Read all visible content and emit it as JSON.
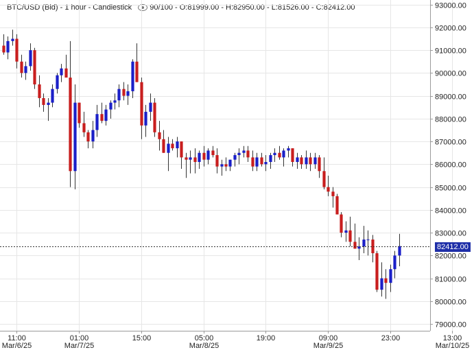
{
  "header": {
    "symbol": "BTC/USD (Bid) - 1 hour - Candlestick",
    "bars": "90/100",
    "open": "O:81999.00",
    "high": "H:82950.00",
    "low": "L:81526.00",
    "close": "C:82412.00"
  },
  "colors": {
    "up": "#1a1fc8",
    "down": "#c81e1e",
    "badge": "#1f2fa8"
  },
  "chart_data": {
    "type": "candlestick",
    "ylim": [
      78700,
      93200
    ],
    "yticks": [
      "93000.00",
      "92000.00",
      "91000.00",
      "90000.00",
      "89000.00",
      "88000.00",
      "87000.00",
      "86000.00",
      "85000.00",
      "84000.00",
      "83000.00",
      "82000.00",
      "81000.00",
      "80000.00",
      "79000.00"
    ],
    "xticks": [
      {
        "time": "11:00",
        "date": "Mar/6/25",
        "index": 3
      },
      {
        "time": "01:00",
        "date": "Mar/7/25",
        "index": 17
      },
      {
        "time": "15:00",
        "date": "",
        "index": 31
      },
      {
        "time": "05:00",
        "date": "Mar/8/25",
        "index": 45
      },
      {
        "time": "19:00",
        "date": "",
        "index": 59
      },
      {
        "time": "09:00",
        "date": "Mar/9/25",
        "index": 73
      },
      {
        "time": "23:00",
        "date": "",
        "index": 87
      },
      {
        "time": "13:00",
        "date": "Mar/10/25",
        "index": 101
      }
    ],
    "last_price": "82412.00",
    "last_value": 82412,
    "candles": [
      [
        91200,
        91700,
        90800,
        90900
      ],
      [
        90900,
        91600,
        90600,
        91400
      ],
      [
        91400,
        91900,
        91200,
        91500
      ],
      [
        91500,
        91700,
        90200,
        90500
      ],
      [
        90500,
        90800,
        89800,
        90000
      ],
      [
        90000,
        90500,
        89700,
        90300
      ],
      [
        90300,
        91300,
        90100,
        91000
      ],
      [
        91000,
        91100,
        89300,
        89500
      ],
      [
        89500,
        89900,
        88500,
        88900
      ],
      [
        88900,
        89100,
        88300,
        88600
      ],
      [
        88600,
        88900,
        87900,
        88700
      ],
      [
        88700,
        89500,
        88500,
        89300
      ],
      [
        89300,
        90000,
        89100,
        89900
      ],
      [
        89900,
        90400,
        89600,
        90200
      ],
      [
        90200,
        90800,
        89800,
        89800
      ],
      [
        89800,
        91400,
        85000,
        85700
      ],
      [
        85700,
        89500,
        84900,
        88700
      ],
      [
        88700,
        88700,
        87600,
        87800
      ],
      [
        87800,
        88300,
        87200,
        87400
      ],
      [
        87400,
        87500,
        86700,
        87000
      ],
      [
        87000,
        87900,
        86700,
        87500
      ],
      [
        87500,
        88600,
        87200,
        88200
      ],
      [
        88200,
        88700,
        87800,
        87900
      ],
      [
        87900,
        88600,
        87700,
        88400
      ],
      [
        88400,
        88800,
        88000,
        88700
      ],
      [
        88700,
        89100,
        88400,
        88800
      ],
      [
        88800,
        89500,
        88500,
        89300
      ],
      [
        89300,
        89600,
        88800,
        89000
      ],
      [
        89000,
        89500,
        88600,
        89200
      ],
      [
        89200,
        90600,
        88900,
        90500
      ],
      [
        90500,
        91300,
        89700,
        89600
      ],
      [
        89600,
        89800,
        87100,
        87700
      ],
      [
        87700,
        88600,
        87200,
        88300
      ],
      [
        88300,
        89100,
        87900,
        88700
      ],
      [
        88700,
        88900,
        87200,
        87400
      ],
      [
        87400,
        87900,
        86600,
        87100
      ],
      [
        87100,
        87500,
        86500,
        86500
      ],
      [
        86500,
        87200,
        85700,
        86900
      ],
      [
        86900,
        87100,
        86600,
        86700
      ],
      [
        86700,
        87200,
        86300,
        87000
      ],
      [
        87000,
        87000,
        85800,
        86300
      ],
      [
        86300,
        86500,
        85400,
        86200
      ],
      [
        86200,
        86600,
        85600,
        86300
      ],
      [
        86300,
        86700,
        85600,
        86100
      ],
      [
        86100,
        86600,
        85800,
        86500
      ],
      [
        86500,
        86800,
        85900,
        86200
      ],
      [
        86200,
        86700,
        86000,
        86600
      ],
      [
        86600,
        86800,
        86300,
        86400
      ],
      [
        86400,
        86700,
        85600,
        85900
      ],
      [
        85900,
        86200,
        85500,
        86000
      ],
      [
        86000,
        86300,
        85700,
        85900
      ],
      [
        85900,
        86200,
        85700,
        86200
      ],
      [
        86200,
        86500,
        85900,
        86400
      ],
      [
        86400,
        86700,
        86000,
        86500
      ],
      [
        86500,
        86800,
        86300,
        86600
      ],
      [
        86600,
        86800,
        86100,
        86300
      ],
      [
        86300,
        86600,
        85700,
        85900
      ],
      [
        85900,
        86500,
        85700,
        86300
      ],
      [
        86300,
        86500,
        85900,
        86000
      ],
      [
        86000,
        86400,
        85700,
        86100
      ],
      [
        86100,
        86500,
        85800,
        86400
      ],
      [
        86400,
        86700,
        86100,
        86500
      ],
      [
        86500,
        86800,
        86200,
        86300
      ],
      [
        86300,
        86700,
        85900,
        86600
      ],
      [
        86600,
        86800,
        86300,
        86700
      ],
      [
        86700,
        86700,
        85900,
        86100
      ],
      [
        86100,
        86500,
        85800,
        86300
      ],
      [
        86300,
        86400,
        85800,
        86000
      ],
      [
        86000,
        86600,
        85800,
        86300
      ],
      [
        86300,
        86500,
        85700,
        86000
      ],
      [
        86000,
        86500,
        85800,
        86300
      ],
      [
        86300,
        86400,
        85400,
        85700
      ],
      [
        85700,
        86300,
        84900,
        85000
      ],
      [
        85000,
        85500,
        84600,
        84800
      ],
      [
        84800,
        85000,
        84100,
        84600
      ],
      [
        84600,
        84700,
        83800,
        83800
      ],
      [
        83800,
        83900,
        82800,
        83000
      ],
      [
        83000,
        83500,
        82600,
        83100
      ],
      [
        83100,
        83700,
        82400,
        82600
      ],
      [
        82600,
        83400,
        82300,
        82300
      ],
      [
        82300,
        82800,
        81800,
        82400
      ],
      [
        82400,
        83300,
        82100,
        82700
      ],
      [
        82700,
        83100,
        82000,
        82700
      ],
      [
        82700,
        82900,
        81700,
        82100
      ],
      [
        82100,
        82200,
        80400,
        80500
      ],
      [
        80500,
        81700,
        80200,
        81000
      ],
      [
        81000,
        81400,
        80100,
        80800
      ],
      [
        80800,
        81600,
        80400,
        81400
      ],
      [
        81400,
        82200,
        81000,
        82000
      ],
      [
        81999,
        82950,
        81526,
        82412
      ]
    ]
  }
}
